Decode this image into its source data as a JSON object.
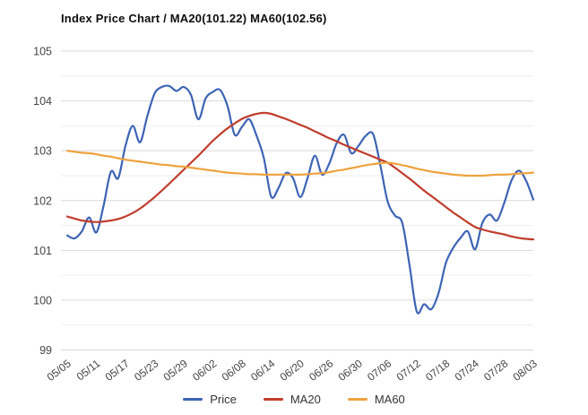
{
  "page": {
    "background": "#ffffff"
  },
  "axis": {
    "text_color": "#444444",
    "major_grid_color": "#d9d9d9",
    "minor_grid_color": "#efefef"
  },
  "chart_data": {
    "type": "line",
    "title": "Index Price Chart / MA20(101.22) MA60(102.56)",
    "xlabel": "",
    "ylabel": "",
    "ylim": [
      99,
      105
    ],
    "y_ticks": [
      99,
      100,
      101,
      102,
      103,
      104,
      105
    ],
    "minor_grid_step": 0.5,
    "grid": true,
    "smooth": true,
    "legend_position": "bottom",
    "points_per_tick": 4,
    "x_tick_labels": [
      "05/05",
      "05/11",
      "05/17",
      "05/23",
      "05/29",
      "06/02",
      "06/08",
      "06/14",
      "06/20",
      "06/26",
      "06/30",
      "07/06",
      "07/12",
      "07/18",
      "07/24",
      "07/28",
      "08/03"
    ],
    "series": [
      {
        "name": "Price",
        "color": "#3D64B5",
        "last_value": 102.02,
        "values": [
          101.3,
          101.24,
          101.38,
          101.66,
          101.36,
          101.9,
          102.58,
          102.45,
          103.1,
          103.5,
          103.17,
          103.7,
          104.15,
          104.28,
          104.3,
          104.2,
          104.28,
          104.12,
          103.63,
          104.05,
          104.18,
          104.22,
          103.9,
          103.32,
          103.48,
          103.63,
          103.3,
          102.85,
          102.08,
          102.25,
          102.55,
          102.45,
          102.07,
          102.45,
          102.9,
          102.52,
          102.75,
          103.15,
          103.32,
          102.95,
          103.1,
          103.3,
          103.33,
          102.7,
          101.98,
          101.7,
          101.55,
          100.7,
          99.77,
          99.92,
          99.82,
          100.15,
          100.75,
          101.05,
          101.25,
          101.38,
          101.02,
          101.55,
          101.72,
          101.6,
          101.95,
          102.4,
          102.6,
          102.4,
          102.02
        ]
      },
      {
        "name": "MA20",
        "color": "#C03D2D",
        "last_value": 101.22,
        "values": [
          101.68,
          101.64,
          101.6,
          101.58,
          101.57,
          101.58,
          101.6,
          101.63,
          101.68,
          101.75,
          101.84,
          101.95,
          102.07,
          102.2,
          102.34,
          102.48,
          102.62,
          102.76,
          102.9,
          103.05,
          103.2,
          103.33,
          103.45,
          103.55,
          103.64,
          103.7,
          103.74,
          103.76,
          103.74,
          103.69,
          103.64,
          103.58,
          103.52,
          103.46,
          103.39,
          103.32,
          103.25,
          103.19,
          103.12,
          103.06,
          103.0,
          102.94,
          102.88,
          102.82,
          102.76,
          102.66,
          102.55,
          102.44,
          102.32,
          102.2,
          102.09,
          101.98,
          101.87,
          101.76,
          101.66,
          101.56,
          101.47,
          101.42,
          101.38,
          101.35,
          101.32,
          101.28,
          101.25,
          101.23,
          101.22
        ]
      },
      {
        "name": "MA60",
        "color": "#EFA23E",
        "last_value": 102.56,
        "values": [
          103.0,
          102.98,
          102.96,
          102.95,
          102.93,
          102.9,
          102.88,
          102.85,
          102.82,
          102.8,
          102.78,
          102.76,
          102.74,
          102.72,
          102.71,
          102.69,
          102.68,
          102.66,
          102.64,
          102.62,
          102.6,
          102.58,
          102.56,
          102.55,
          102.54,
          102.53,
          102.53,
          102.52,
          102.52,
          102.52,
          102.52,
          102.52,
          102.52,
          102.53,
          102.54,
          102.55,
          102.57,
          102.6,
          102.62,
          102.65,
          102.68,
          102.71,
          102.73,
          102.75,
          102.76,
          102.74,
          102.71,
          102.68,
          102.64,
          102.61,
          102.58,
          102.56,
          102.54,
          102.52,
          102.51,
          102.5,
          102.5,
          102.5,
          102.51,
          102.52,
          102.52,
          102.53,
          102.54,
          102.55,
          102.56
        ]
      }
    ]
  }
}
